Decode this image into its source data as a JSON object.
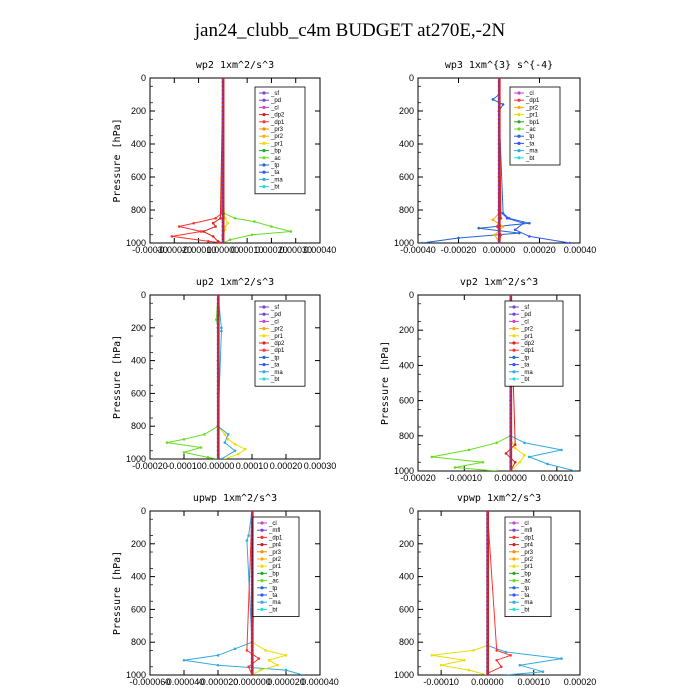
{
  "title": "jan24_clubb_c4m  BUDGET at270E,-2N",
  "colors": {
    "sf": "#7744cc",
    "pd": "#7744cc",
    "cl": "#cc44cc",
    "dp2": "#dd2222",
    "dp1": "#ff3333",
    "pr3": "#ff8800",
    "pr2": "#ffaa00",
    "pr1": "#eedd00",
    "bp": "#22aa22",
    "bp1": "#22aa22",
    "ac": "#66dd22",
    "tp": "#2266cc",
    "ta": "#3355ff",
    "ma": "#33aadd",
    "bt": "#22dddd",
    "mfl": "#7744cc",
    "pr4": "#cc2222"
  },
  "chart_data": [
    {
      "type": "line",
      "title": "wp2  1xm^2/s^3",
      "ylabel": "Pressure [hPa]",
      "xlim": [
        -0.0003,
        0.0004
      ],
      "ylim": [
        1000,
        0
      ],
      "xticks": [
        -0.0003,
        -0.0002,
        -0.0001,
        0.0,
        0.0001,
        0.0002,
        0.0003,
        0.0004
      ],
      "xticklabels": [
        "-0.00030",
        "-0.00020",
        "-0.00010",
        "0.00000",
        "0.00010",
        "0.00020",
        "0.00030",
        "0.00040"
      ],
      "yticks": [
        0,
        200,
        400,
        600,
        800,
        1000
      ],
      "legend": [
        "_sf",
        "_pd",
        "_cl",
        "_dp2",
        "_dp1",
        "_pr3",
        "_pr2",
        "_pr1",
        "_bp",
        "_ac",
        "_tp",
        "_ta",
        "_ma",
        "_bt"
      ],
      "series": [
        {
          "name": "_pr1",
          "key": "pr1",
          "p": [
            0,
            800,
            850,
            880,
            900,
            920,
            950,
            980,
            1000
          ],
          "x": [
            0,
            0,
            1e-05,
            2e-05,
            1e-05,
            1e-05,
            0,
            0,
            0
          ]
        },
        {
          "name": "_ac",
          "key": "ac",
          "p": [
            0,
            820,
            850,
            870,
            900,
            930,
            950,
            980,
            1000
          ],
          "x": [
            0,
            5e-06,
            5e-05,
            0.00013,
            0.0002,
            0.00028,
            0.00012,
            3e-05,
            0
          ]
        },
        {
          "name": "_dp1",
          "key": "dp1",
          "p": [
            0,
            820,
            850,
            880,
            900,
            930,
            960,
            990,
            1000
          ],
          "x": [
            0,
            -5e-06,
            -3e-05,
            -0.00012,
            -0.00018,
            -9e-05,
            -0.00021,
            -6e-05,
            0
          ]
        },
        {
          "name": "_dp2",
          "key": "dp2",
          "p": [
            0,
            850,
            880,
            900,
            930,
            960,
            990,
            1000
          ],
          "x": [
            0,
            -1e-05,
            -4e-05,
            -3e-05,
            -8e-05,
            -4e-05,
            -2e-05,
            0
          ]
        },
        {
          "name": "_pd",
          "key": "pd",
          "p": [
            0,
            200,
            400,
            600,
            800,
            860,
            900,
            960,
            1000
          ],
          "x": [
            0,
            0,
            0,
            0,
            0,
            0,
            0,
            0,
            0
          ]
        },
        {
          "name": "_bt",
          "key": "bt",
          "p": [
            0,
            150,
            300,
            600,
            900,
            1000
          ],
          "x": [
            0,
            0,
            0,
            0,
            0,
            0
          ]
        }
      ]
    },
    {
      "type": "line",
      "title": "wp3  1xm^{3} s^{-4}",
      "ylabel": "",
      "xlim": [
        -0.0004,
        0.0004
      ],
      "ylim": [
        1000,
        0
      ],
      "xticks": [
        -0.0004,
        -0.0002,
        0.0,
        0.0002,
        0.0004
      ],
      "xticklabels": [
        "-0.00040",
        "-0.00020",
        "0.00000",
        "0.00020",
        "0.00040"
      ],
      "yticks": [
        0,
        200,
        400,
        600,
        800,
        1000
      ],
      "legend": [
        "_cl",
        "_dp1",
        "_pr2",
        "_pr1",
        "_bp1",
        "_ac",
        "_tp",
        "_ta",
        "_ma",
        "_bt"
      ],
      "series": [
        {
          "name": "_tp",
          "key": "tp",
          "p": [
            0,
            100,
            130,
            160,
            200,
            820,
            850,
            880,
            910,
            940,
            970,
            1000
          ],
          "x": [
            0,
            0,
            -3e-05,
            2e-05,
            0,
            2e-05,
            5e-05,
            0.00015,
            -0.0001,
            0.0001,
            -0.0002,
            -0.00038
          ]
        },
        {
          "name": "_ta",
          "key": "ta",
          "p": [
            0,
            800,
            850,
            880,
            920,
            960,
            1000
          ],
          "x": [
            0,
            0,
            4e-05,
            0.00012,
            8e-05,
            0.00015,
            0.00035
          ]
        },
        {
          "name": "_pr2",
          "key": "pr2",
          "p": [
            0,
            820,
            860,
            900,
            950,
            1000
          ],
          "x": [
            0,
            0,
            -3e-05,
            2e-05,
            -2e-05,
            0
          ]
        },
        {
          "name": "_dp1",
          "key": "dp1",
          "p": [
            0,
            850,
            900,
            950,
            1000
          ],
          "x": [
            0,
            1e-05,
            -1e-05,
            1e-05,
            0
          ]
        },
        {
          "name": "_cl",
          "key": "cl",
          "p": [
            0,
            200,
            400,
            600,
            800,
            1000
          ],
          "x": [
            0,
            0,
            0,
            0,
            0,
            0
          ]
        }
      ]
    },
    {
      "type": "line",
      "title": "up2  1xm^2/s^3",
      "ylabel": "Pressure [hPa]",
      "xlim": [
        -0.0002,
        0.0003
      ],
      "ylim": [
        1000,
        0
      ],
      "xticks": [
        -0.0002,
        -0.0001,
        0.0,
        0.0001,
        0.0002,
        0.0003
      ],
      "xticklabels": [
        "-0.00020",
        "-0.00010",
        "0.00000",
        "0.00010",
        "0.00020",
        "0.00030"
      ],
      "yticks": [
        0,
        200,
        400,
        600,
        800,
        1000
      ],
      "legend": [
        "_sf",
        "_pd",
        "_cl",
        "_pr2",
        "_pr1",
        "_dp2",
        "_dp1",
        "_tp",
        "_ta",
        "_ma",
        "_bt"
      ],
      "series": [
        {
          "name": "_dp1",
          "key": "ac",
          "p": [
            0,
            150,
            200,
            800,
            850,
            880,
            900,
            930,
            960,
            990,
            1000
          ],
          "x": [
            0,
            -5e-06,
            0,
            0,
            -4e-05,
            -0.0001,
            -0.00015,
            -5e-05,
            -0.0001,
            -3e-05,
            0
          ]
        },
        {
          "name": "_pr1",
          "key": "pr1",
          "p": [
            0,
            800,
            850,
            880,
            910,
            940,
            970,
            1000
          ],
          "x": [
            0,
            0,
            2e-05,
            3e-05,
            5e-05,
            8e-05,
            6e-05,
            2e-05
          ]
        },
        {
          "name": "_ma",
          "key": "ma",
          "p": [
            0,
            200,
            220,
            800,
            850,
            900,
            950,
            1000
          ],
          "x": [
            0,
            1e-05,
            1e-05,
            0,
            3e-05,
            2e-05,
            5e-05,
            1e-05
          ]
        },
        {
          "name": "_pd",
          "key": "pd",
          "p": [
            0,
            200,
            400,
            600,
            800,
            1000
          ],
          "x": [
            0,
            0,
            0,
            0,
            0,
            0
          ]
        }
      ]
    },
    {
      "type": "line",
      "title": "vp2  1xm^2/s^3",
      "ylabel": "Pressure [hPa]",
      "xlim": [
        -0.0002,
        0.00015
      ],
      "ylim": [
        1000,
        0
      ],
      "xticks": [
        -0.0002,
        -0.0001,
        0.0,
        0.0001
      ],
      "xticklabels": [
        "-0.00020",
        "-0.00010",
        "0.00000",
        "0.00010"
      ],
      "yticks": [
        0,
        200,
        400,
        600,
        800,
        1000
      ],
      "legend": [
        "_sf",
        "_pd",
        "_cl",
        "_pr2",
        "_pr1",
        "_dp2",
        "_dp1",
        "_tp",
        "_ta",
        "_ma",
        "_bt"
      ],
      "series": [
        {
          "name": "_dp1",
          "key": "ac",
          "p": [
            0,
            150,
            200,
            800,
            840,
            880,
            920,
            950,
            980,
            1000
          ],
          "x": [
            0,
            -5e-06,
            0,
            0,
            -3e-05,
            -9e-05,
            -0.00017,
            -6e-05,
            -0.00012,
            -3e-05
          ]
        },
        {
          "name": "_ma",
          "key": "ma",
          "p": [
            0,
            800,
            840,
            880,
            920,
            960,
            1000
          ],
          "x": [
            0,
            0,
            3e-05,
            0.00011,
            4e-05,
            8e-05,
            0.00014
          ]
        },
        {
          "name": "_pr1",
          "key": "pr1",
          "p": [
            0,
            820,
            870,
            910,
            950,
            1000
          ],
          "x": [
            0,
            0,
            1e-05,
            3e-05,
            2e-05,
            0
          ]
        },
        {
          "name": "_dp2",
          "key": "dp2",
          "p": [
            0,
            850,
            900,
            950,
            1000
          ],
          "x": [
            0,
            1e-05,
            -1e-05,
            1e-05,
            0
          ]
        },
        {
          "name": "_pd",
          "key": "pd",
          "p": [
            0,
            200,
            400,
            600,
            800,
            1000
          ],
          "x": [
            0,
            0,
            0,
            0,
            0,
            0
          ]
        }
      ]
    },
    {
      "type": "line",
      "title": "upwp  1xm^2/s^3",
      "ylabel": "Pressure [hPa]",
      "xlim": [
        -6e-05,
        4e-05
      ],
      "ylim": [
        1000,
        0
      ],
      "xticks": [
        -6e-05,
        -4e-05,
        -2e-05,
        0.0,
        2e-05,
        4e-05
      ],
      "xticklabels": [
        "-0.000060",
        "-0.000040",
        "-0.000020",
        "0.000000",
        "0.000020",
        "0.000040"
      ],
      "yticks": [
        0,
        200,
        400,
        600,
        800,
        1000
      ],
      "legend": [
        "_cl",
        "_mfl",
        "_dp1",
        "_pr4",
        "_pr3",
        "_pr2",
        "_pr1",
        "_bp",
        "_ac",
        "_tp",
        "_ta",
        "_ma",
        "_bt"
      ],
      "series": [
        {
          "name": "_ma",
          "key": "ma",
          "p": [
            0,
            150,
            180,
            800,
            840,
            880,
            910,
            940,
            970,
            1000
          ],
          "x": [
            0,
            -2e-06,
            -3e-06,
            0,
            -1e-05,
            -2e-05,
            -4e-05,
            -2e-05,
            2e-05,
            3e-05
          ]
        },
        {
          "name": "_pr1",
          "key": "pr1",
          "p": [
            0,
            150,
            200,
            800,
            850,
            880,
            910,
            940,
            970,
            1000
          ],
          "x": [
            0,
            3e-06,
            4e-06,
            0,
            8e-06,
            2e-05,
            1e-05,
            1.5e-05,
            5e-06,
            0
          ]
        },
        {
          "name": "_dp1",
          "key": "dp1",
          "p": [
            0,
            850,
            900,
            950,
            1000
          ],
          "x": [
            0,
            -3e-06,
            4e-06,
            -2e-06,
            0
          ]
        },
        {
          "name": "_cl",
          "key": "cl",
          "p": [
            0,
            200,
            400,
            600,
            800,
            1000
          ],
          "x": [
            0,
            0,
            0,
            0,
            0,
            0
          ]
        }
      ]
    },
    {
      "type": "line",
      "title": "vpwp  1xm^2/s^3",
      "ylabel": "",
      "xlim": [
        -0.00015,
        0.0002
      ],
      "ylim": [
        1000,
        0
      ],
      "xticks": [
        -0.0001,
        0.0,
        0.0001,
        0.0002
      ],
      "xticklabels": [
        "-0.00010",
        "0.00000",
        "0.00010",
        "0.00020"
      ],
      "yticks": [
        0,
        200,
        400,
        600,
        800,
        1000
      ],
      "legend": [
        "_cl",
        "_mfl",
        "_dp1",
        "_pr4",
        "_pr3",
        "_pr2",
        "_pr1",
        "_bp",
        "_ac",
        "_tp",
        "_ta",
        "_ma",
        "_bt"
      ],
      "series": [
        {
          "name": "_pr1",
          "key": "pr1",
          "p": [
            0,
            820,
            850,
            880,
            910,
            940,
            970,
            1000
          ],
          "x": [
            0,
            0,
            -3e-05,
            -0.00012,
            -5e-05,
            -0.0001,
            -4e-05,
            0
          ]
        },
        {
          "name": "_ma",
          "key": "ma",
          "p": [
            0,
            820,
            860,
            900,
            940,
            980,
            1000
          ],
          "x": [
            0,
            0,
            4e-05,
            0.00016,
            7e-05,
            0.00012,
            4e-05
          ]
        },
        {
          "name": "_dp1",
          "key": "dp1",
          "p": [
            0,
            850,
            880,
            910,
            950,
            990
          ],
          "x": [
            0,
            2e-05,
            5e-05,
            2e-05,
            3e-05,
            0
          ]
        },
        {
          "name": "_cl",
          "key": "cl",
          "p": [
            0,
            200,
            400,
            600,
            800,
            1000
          ],
          "x": [
            0,
            0,
            0,
            0,
            0,
            0
          ]
        }
      ]
    }
  ]
}
